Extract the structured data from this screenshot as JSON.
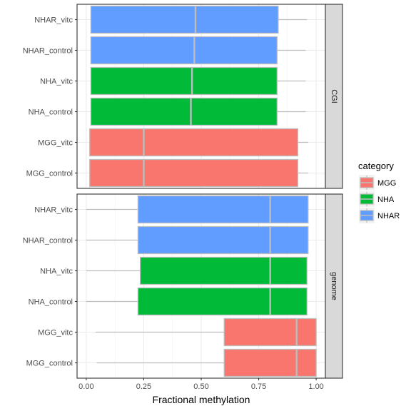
{
  "chart_data": {
    "type": "boxplot",
    "orientation": "horizontal",
    "xlabel": "Fractional methylation",
    "xlim": [
      -0.04,
      1.04
    ],
    "xticks": [
      0.0,
      0.25,
      0.5,
      0.75,
      1.0
    ],
    "xtick_labels": [
      "0.00",
      "0.25",
      "0.50",
      "0.75",
      "1.00"
    ],
    "categories": [
      "NHAR_vitc",
      "NHAR_control",
      "NHA_vitc",
      "NHA_control",
      "MGG_vitc",
      "MGG_control"
    ],
    "facets": [
      {
        "label": "CGI",
        "boxes": [
          {
            "name": "NHAR_vitc",
            "category": "NHAR",
            "whisker_low": 0.02,
            "q1": 0.02,
            "median": 0.475,
            "q3": 0.835,
            "whisker_high": 0.96
          },
          {
            "name": "NHAR_control",
            "category": "NHAR",
            "whisker_low": 0.02,
            "q1": 0.02,
            "median": 0.47,
            "q3": 0.83,
            "whisker_high": 0.955
          },
          {
            "name": "NHA_vitc",
            "category": "NHA",
            "whisker_low": 0.02,
            "q1": 0.02,
            "median": 0.46,
            "q3": 0.83,
            "whisker_high": 0.955
          },
          {
            "name": "NHA_control",
            "category": "NHA",
            "whisker_low": 0.02,
            "q1": 0.02,
            "median": 0.455,
            "q3": 0.83,
            "whisker_high": 0.955
          },
          {
            "name": "MGG_vitc",
            "category": "MGG",
            "whisker_low": 0.015,
            "q1": 0.015,
            "median": 0.25,
            "q3": 0.92,
            "whisker_high": 0.965
          },
          {
            "name": "MGG_control",
            "category": "MGG",
            "whisker_low": 0.015,
            "q1": 0.015,
            "median": 0.25,
            "q3": 0.92,
            "whisker_high": 0.965
          }
        ]
      },
      {
        "label": "genome",
        "boxes": [
          {
            "name": "NHAR_vitc",
            "category": "NHAR",
            "whisker_low": 0.0,
            "q1": 0.225,
            "median": 0.8,
            "q3": 0.965,
            "whisker_high": 0.965
          },
          {
            "name": "NHAR_control",
            "category": "NHAR",
            "whisker_low": 0.0,
            "q1": 0.225,
            "median": 0.8,
            "q3": 0.965,
            "whisker_high": 0.965
          },
          {
            "name": "NHA_vitc",
            "category": "NHA",
            "whisker_low": 0.0,
            "q1": 0.235,
            "median": 0.8,
            "q3": 0.96,
            "whisker_high": 0.96
          },
          {
            "name": "NHA_control",
            "category": "NHA",
            "whisker_low": 0.0,
            "q1": 0.225,
            "median": 0.8,
            "q3": 0.96,
            "whisker_high": 0.96
          },
          {
            "name": "MGG_vitc",
            "category": "MGG",
            "whisker_low": 0.04,
            "q1": 0.6,
            "median": 0.915,
            "q3": 1.0,
            "whisker_high": 1.0
          },
          {
            "name": "MGG_control",
            "category": "MGG",
            "whisker_low": 0.045,
            "q1": 0.6,
            "median": 0.915,
            "q3": 1.0,
            "whisker_high": 1.0
          }
        ]
      }
    ],
    "legend": {
      "title": "category",
      "position": "right",
      "items": [
        {
          "label": "MGG",
          "color": "#F8766D"
        },
        {
          "label": "NHA",
          "color": "#00BA38"
        },
        {
          "label": "NHAR",
          "color": "#619CFF"
        }
      ]
    },
    "colors": {
      "MGG": "#F8766D",
      "NHA": "#00BA38",
      "NHAR": "#619CFF"
    },
    "grid": true
  }
}
